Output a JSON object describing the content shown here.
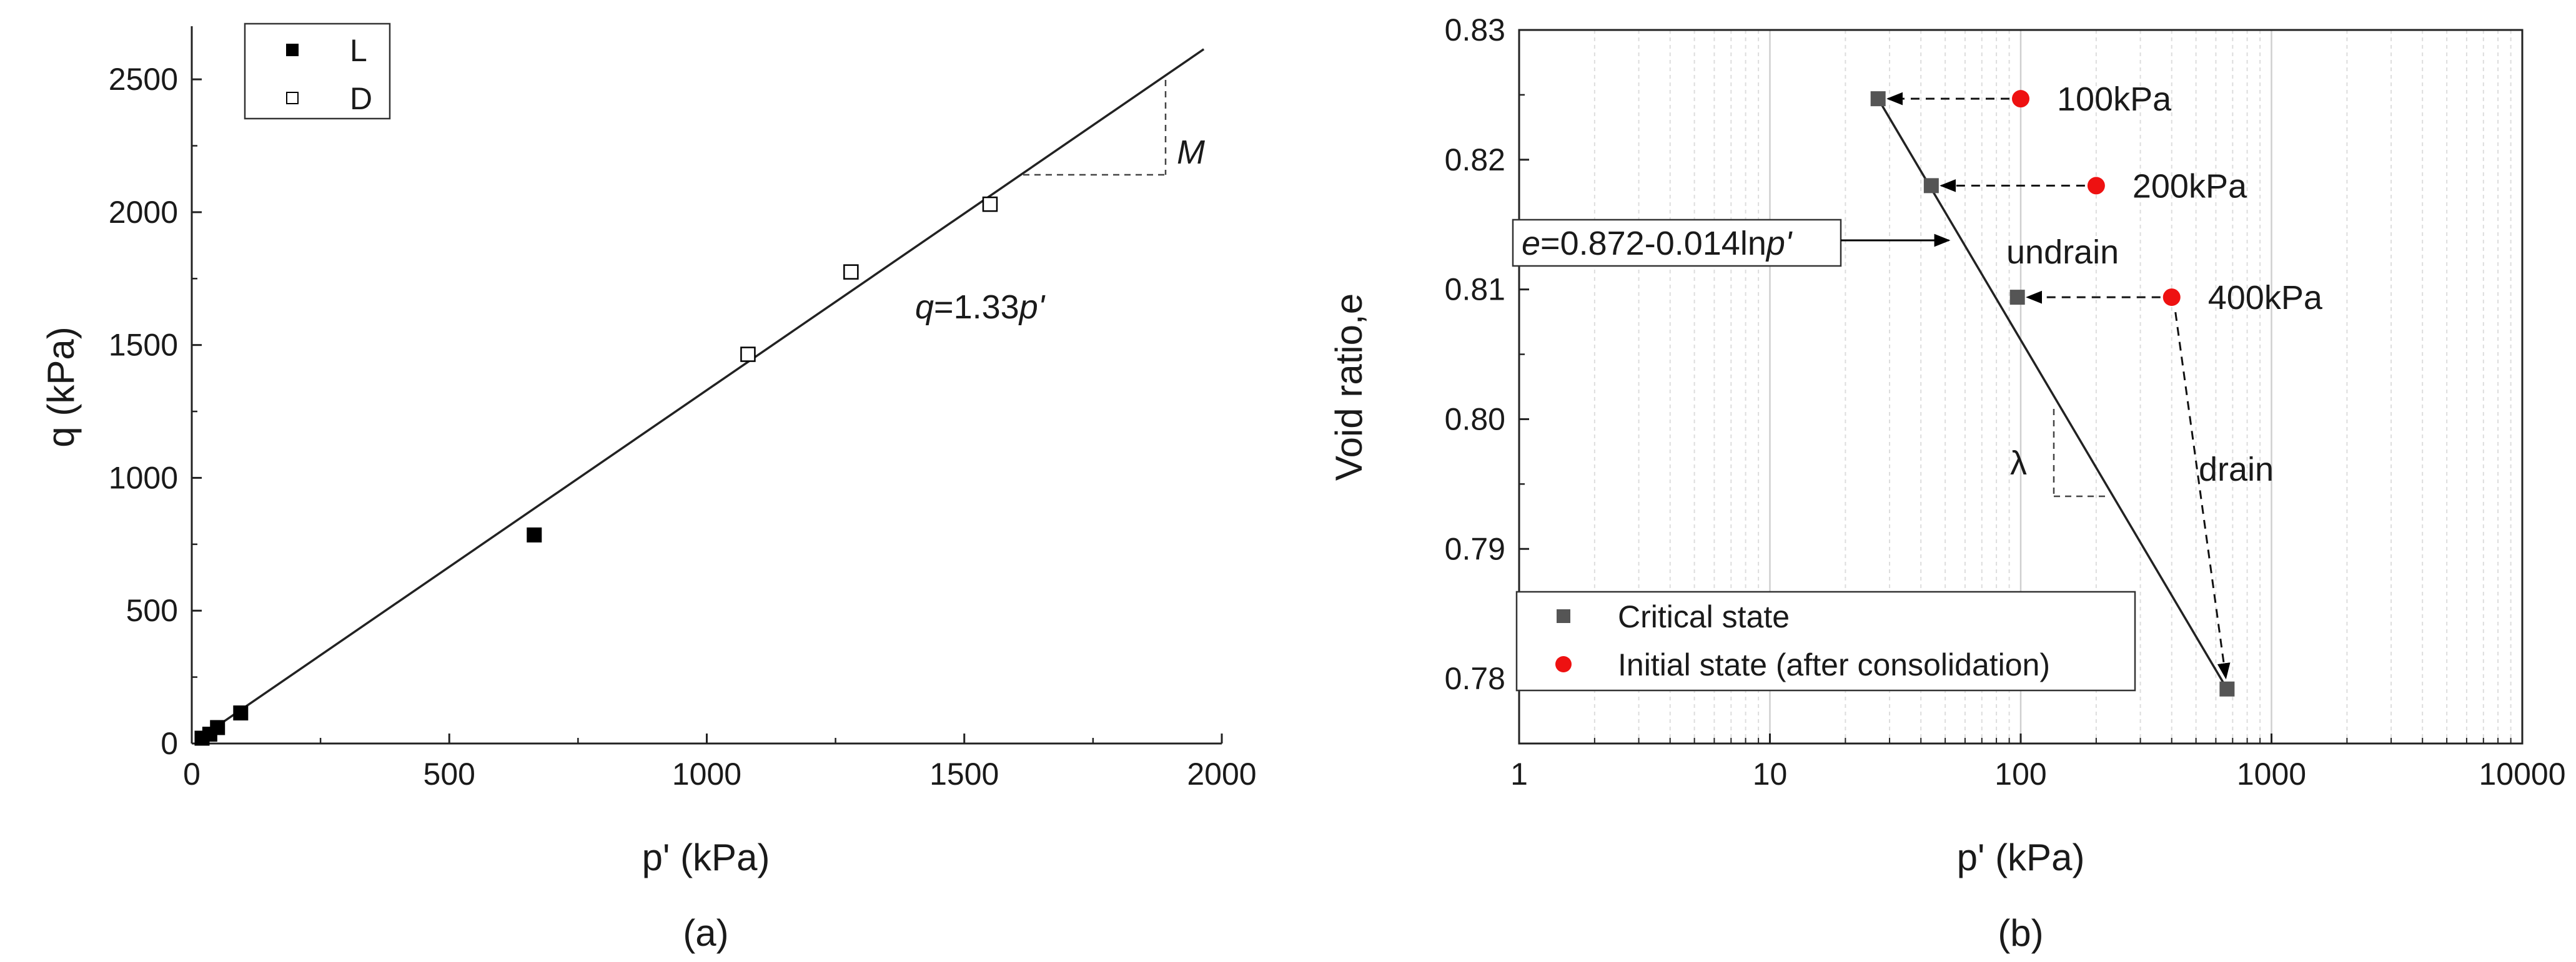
{
  "chart_data": [
    {
      "type": "scatter",
      "panel_label": "(a)",
      "xlabel": "p' (kPa)",
      "ylabel": "q (kPa)",
      "xlim": [
        0,
        2000
      ],
      "ylim": [
        0,
        2700
      ],
      "xticks": [
        0,
        500,
        1000,
        1500,
        2000
      ],
      "yticks": [
        0,
        500,
        1000,
        1500,
        2000,
        2500
      ],
      "series": [
        {
          "name": "L",
          "marker": "filled-square",
          "color": "#000000",
          "points": [
            [
              20,
              20
            ],
            [
              35,
              35
            ],
            [
              50,
              60
            ],
            [
              95,
              115
            ],
            [
              665,
              785
            ]
          ]
        },
        {
          "name": "D",
          "marker": "open-square",
          "color": "#000000",
          "points": [
            [
              1080,
              1465
            ],
            [
              1280,
              1775
            ],
            [
              1550,
              2030
            ]
          ]
        }
      ],
      "fit_line": {
        "slope": 1.33,
        "x_range": [
          60,
          1965
        ],
        "label_prefix": "q",
        "label_mid": "=1.33",
        "label_suffix": "p'"
      },
      "slope_triangle_label": "M",
      "legend_position": "top-left",
      "grid": false
    },
    {
      "type": "scatter",
      "panel_label": "(b)",
      "xlabel": "p' (kPa)",
      "ylabel": "Void ratio,e",
      "x_scale": "log",
      "xlim": [
        1,
        10000
      ],
      "ylim": [
        0.775,
        0.83
      ],
      "xticks": [
        "1",
        "10",
        "100",
        "1000",
        "10000"
      ],
      "yticks": [
        "0.78",
        "0.79",
        "0.80",
        "0.81",
        "0.82",
        "0.83"
      ],
      "series": [
        {
          "name": "Critical state",
          "marker": "filled-square",
          "color": "#555555",
          "points": [
            [
              27,
              0.8247
            ],
            [
              44,
              0.818
            ],
            [
              97,
              0.8094
            ],
            [
              665,
              0.7792
            ]
          ]
        },
        {
          "name": "Initial state (after consolidation)",
          "marker": "filled-circle",
          "color": "#ee1111",
          "points": [
            [
              100,
              0.8247
            ],
            [
              200,
              0.818
            ],
            [
              400,
              0.8094
            ]
          ]
        }
      ],
      "point_labels": [
        "100kPa",
        "200kPa",
        "400kPa"
      ],
      "fit_line": {
        "label_prefix": "e",
        "label_mid": "=0.872-0.014ln",
        "label_suffix": "p'"
      },
      "annotations": [
        "undrain",
        "drain",
        "λ"
      ],
      "legend_position": "bottom-left",
      "grid": true
    }
  ]
}
